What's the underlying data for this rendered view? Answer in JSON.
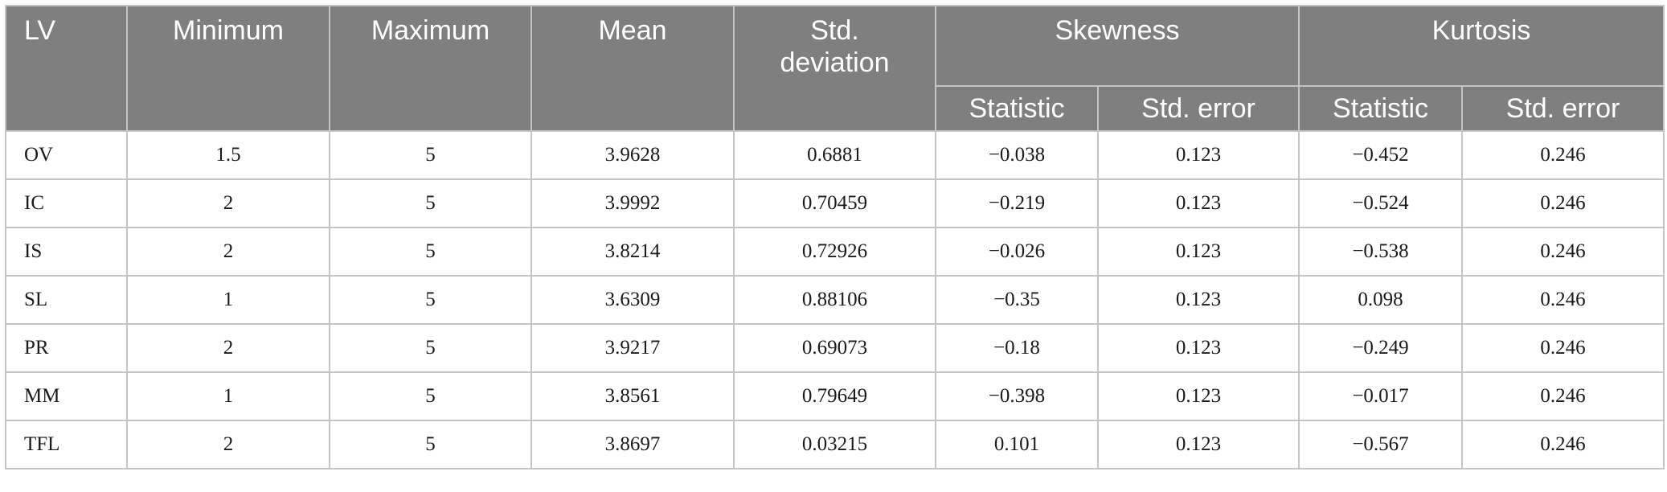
{
  "headers": {
    "lv": "LV",
    "minimum": "Minimum",
    "maximum": "Maximum",
    "mean": "Mean",
    "std_line1": "Std.",
    "std_line2": "deviation",
    "skewness": "Skewness",
    "kurtosis": "Kurtosis",
    "skew_statistic": "Statistic",
    "skew_std_error": "Std. error",
    "kurt_statistic": "Statistic",
    "kurt_std_error": "Std. error"
  },
  "rows": [
    {
      "lv": "OV",
      "min": "1.5",
      "max": "5",
      "mean": "3.9628",
      "std": "0.6881",
      "skew_stat": "−0.038",
      "skew_err": "0.123",
      "kurt_stat": "−0.452",
      "kurt_err": "0.246"
    },
    {
      "lv": "IC",
      "min": "2",
      "max": "5",
      "mean": "3.9992",
      "std": "0.70459",
      "skew_stat": "−0.219",
      "skew_err": "0.123",
      "kurt_stat": "−0.524",
      "kurt_err": "0.246"
    },
    {
      "lv": "IS",
      "min": "2",
      "max": "5",
      "mean": "3.8214",
      "std": "0.72926",
      "skew_stat": "−0.026",
      "skew_err": "0.123",
      "kurt_stat": "−0.538",
      "kurt_err": "0.246"
    },
    {
      "lv": "SL",
      "min": "1",
      "max": "5",
      "mean": "3.6309",
      "std": "0.88106",
      "skew_stat": "−0.35",
      "skew_err": "0.123",
      "kurt_stat": "0.098",
      "kurt_err": "0.246"
    },
    {
      "lv": "PR",
      "min": "2",
      "max": "5",
      "mean": "3.9217",
      "std": "0.69073",
      "skew_stat": "−0.18",
      "skew_err": "0.123",
      "kurt_stat": "−0.249",
      "kurt_err": "0.246"
    },
    {
      "lv": "MM",
      "min": "1",
      "max": "5",
      "mean": "3.8561",
      "std": "0.79649",
      "skew_stat": "−0.398",
      "skew_err": "0.123",
      "kurt_stat": "−0.017",
      "kurt_err": "0.246"
    },
    {
      "lv": "TFL",
      "min": "2",
      "max": "5",
      "mean": "3.8697",
      "std": "0.03215",
      "skew_stat": "0.101",
      "skew_err": "0.123",
      "kurt_stat": "−0.567",
      "kurt_err": "0.246"
    }
  ],
  "colors": {
    "header_bg": "#7f7f7f",
    "header_text": "#ffffff",
    "grid": "#c4c4c4",
    "body_text": "#1a1a1a"
  }
}
